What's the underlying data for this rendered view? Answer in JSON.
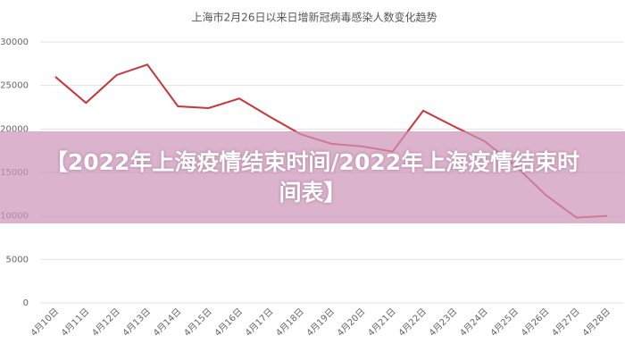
{
  "chart_data": {
    "type": "line",
    "title": "上海市2月26日以来日增新冠病毒感染人数变化趋势",
    "categories": [
      "4月10日",
      "4月11日",
      "4月12日",
      "4月13日",
      "4月14日",
      "4月15日",
      "4月16日",
      "4月17日",
      "4月18日",
      "4月19日",
      "4月20日",
      "4月21日",
      "4月22日",
      "4月23日",
      "4月24日",
      "4月25日",
      "4月26日",
      "4月27日",
      "4月28日"
    ],
    "series": [
      {
        "color": "#c9353b",
        "values": [
          26000,
          23000,
          26200,
          27400,
          22600,
          22400,
          23500,
          21400,
          19400,
          18300,
          18000,
          17400,
          22100,
          20300,
          18600,
          15800,
          12400,
          9800,
          10000
        ]
      }
    ],
    "ylim": [
      0,
      30000
    ],
    "yticks": [
      0,
      5000,
      10000,
      15000,
      20000,
      25000,
      30000
    ],
    "grid": true
  },
  "overlay": {
    "text": "【2022年上海疫情结束时间/2022年上海疫情结束时间表】"
  }
}
